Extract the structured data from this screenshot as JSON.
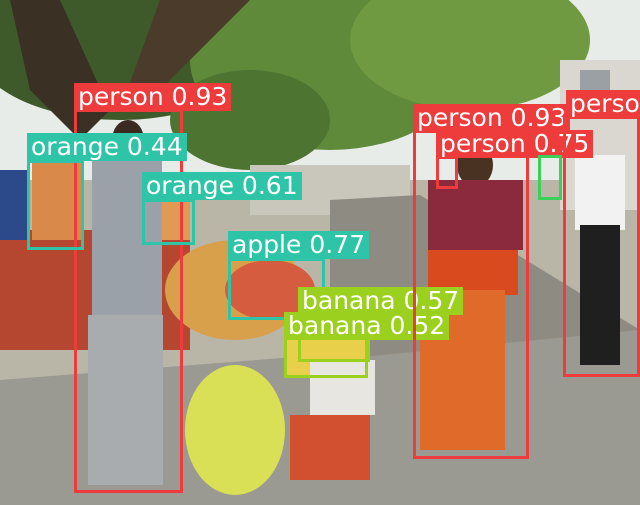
{
  "image": {
    "description_colors": {
      "person": "#ee3b3b",
      "orange": "#2ec4a8",
      "apple": "#2ec4a8",
      "banana": "#9bd11e",
      "partial": "#3ad05a"
    }
  },
  "detections": [
    {
      "label": "person 0.93"
    },
    {
      "label": "orange 0.44"
    },
    {
      "label": "orange 0.61"
    },
    {
      "label": "apple 0.77"
    },
    {
      "label": "banana 0.57"
    },
    {
      "label": "banana 0.52"
    },
    {
      "label": "person 0.93"
    },
    {
      "label": "person 0.75"
    },
    {
      "label": "perso"
    }
  ]
}
